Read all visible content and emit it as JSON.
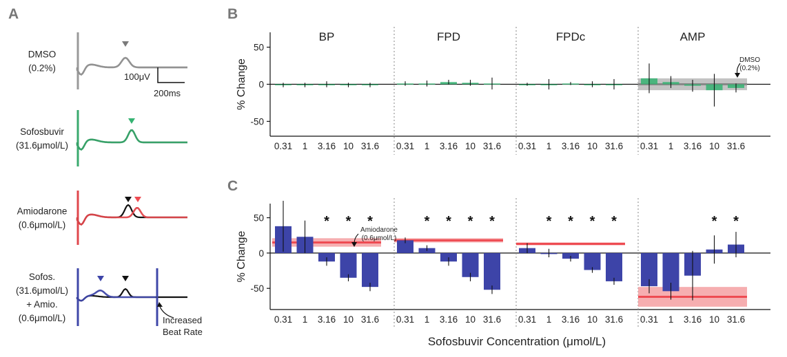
{
  "panel_letters": {
    "a": "A",
    "b": "B",
    "c": "C"
  },
  "panel_a": {
    "traces": [
      {
        "label_lines": [
          "DMSO",
          "(0.2%)"
        ],
        "color": "#9a9a9a"
      },
      {
        "label_lines": [
          "Sofosbuvir",
          "(31.6μmol/L)"
        ],
        "color": "#3aaa6e"
      },
      {
        "label_lines": [
          "Amiodarone",
          "(0.6μmol/L)"
        ],
        "color": "#e0474c"
      },
      {
        "label_lines": [
          "Sofos.",
          "(31.6μmol/L)",
          "+ Amio.",
          "(0.6μmol/L)"
        ],
        "color": "#3f47a8"
      }
    ],
    "scale_voltage": "100μV",
    "scale_time": "200ms",
    "increased_beat_rate_lines": [
      "Increased",
      "Beat Rate"
    ]
  },
  "colors": {
    "green": "#35b372",
    "blue": "#3d44a8",
    "red": "#ee4b52",
    "red_band": "#f4a0a2",
    "gray_band": "#b9b9b9",
    "baseline_trace": "#111111"
  },
  "chart_data": [
    {
      "type": "bar",
      "panel": "B",
      "ylabel": "% Change",
      "ylim": [
        -70,
        70
      ],
      "yticks": [
        50,
        0,
        -50
      ],
      "categories": [
        "0.31",
        "1",
        "3.16",
        "10",
        "31.6"
      ],
      "dmso_annotation_lines": [
        "DMSO",
        "(0.2%)"
      ],
      "series": [
        {
          "name": "BP",
          "values": [
            -1,
            -1,
            0,
            -1,
            -1
          ],
          "err": [
            3,
            3,
            4,
            3,
            3
          ]
        },
        {
          "name": "FPD",
          "values": [
            1,
            1,
            3,
            2,
            1
          ],
          "err": [
            3,
            4,
            3,
            4,
            8
          ]
        },
        {
          "name": "FPDc",
          "values": [
            0,
            0,
            1,
            0,
            0
          ],
          "err": [
            2,
            7,
            2,
            4,
            7
          ]
        },
        {
          "name": "AMP",
          "values": [
            8,
            3,
            -2,
            -8,
            -5
          ],
          "err": [
            20,
            8,
            8,
            22,
            6
          ]
        }
      ],
      "reference_bands": [
        {
          "series": "AMP",
          "center": 0,
          "half_width": 8
        }
      ]
    },
    {
      "type": "bar",
      "panel": "C",
      "ylabel": "% Change",
      "xlabel": "Sofosbuvir Concentration (μmol/L)",
      "ylim": [
        -80,
        70
      ],
      "yticks": [
        50,
        0,
        -50
      ],
      "categories": [
        "0.31",
        "1",
        "3.16",
        "10",
        "31.6"
      ],
      "amiodarone_annotation_lines": [
        "Amiodarone",
        "(0.6μmol/L)"
      ],
      "significance_marker": "*",
      "series": [
        {
          "name": "BP",
          "values": [
            38,
            23,
            -12,
            -35,
            -48
          ],
          "err": [
            36,
            23,
            6,
            5,
            6
          ],
          "significant": [
            false,
            false,
            true,
            true,
            true
          ]
        },
        {
          "name": "FPD",
          "values": [
            18,
            7,
            -12,
            -34,
            -52
          ],
          "err": [
            4,
            4,
            6,
            6,
            6
          ],
          "significant": [
            false,
            true,
            true,
            true,
            true
          ]
        },
        {
          "name": "FPDc",
          "values": [
            7,
            0,
            -8,
            -24,
            -40
          ],
          "err": [
            7,
            6,
            4,
            4,
            5
          ],
          "significant": [
            false,
            true,
            true,
            true,
            true
          ]
        },
        {
          "name": "AMP",
          "values": [
            -47,
            -54,
            -32,
            5,
            12
          ],
          "err": [
            10,
            12,
            35,
            20,
            18
          ],
          "significant": [
            false,
            false,
            false,
            true,
            true
          ]
        }
      ],
      "reference_bands": [
        {
          "series": "BP",
          "center": 15,
          "half_width": 6
        },
        {
          "series": "FPD",
          "center": 18,
          "half_width": 3
        },
        {
          "series": "FPDc",
          "center": 13,
          "half_width": 2
        },
        {
          "series": "AMP",
          "center": -62,
          "half_width": 14
        }
      ]
    }
  ]
}
